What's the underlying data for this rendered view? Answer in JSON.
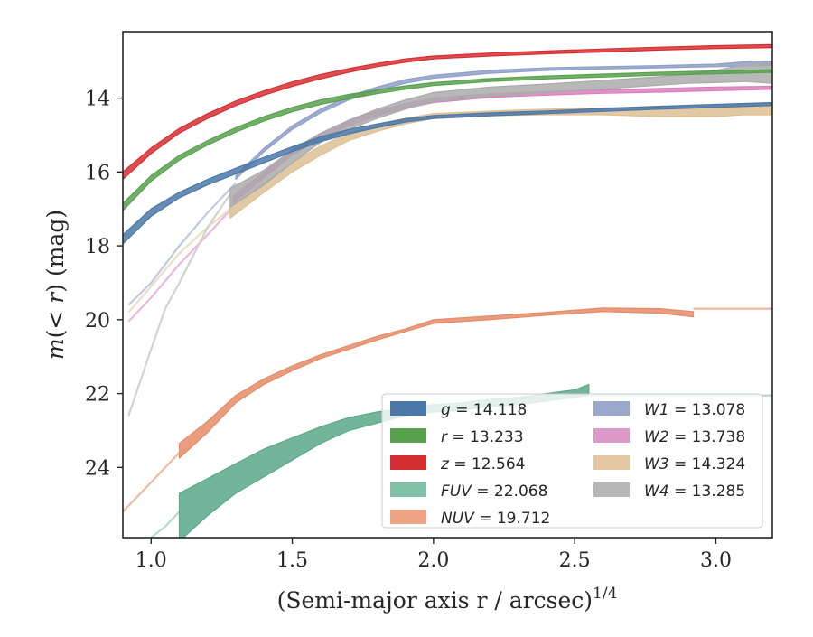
{
  "chart_data": {
    "type": "line",
    "xlabel": "(Semi-major axis r / arcsec)",
    "xlabel_superscript": "1/4",
    "ylabel": "m(< r) (mag)",
    "xlim": [
      0.9,
      3.2
    ],
    "ylim": [
      25.9,
      12.2
    ],
    "y_inverted": true,
    "grid": false,
    "legend_position": "lower-right",
    "x_ticks": [
      1.0,
      1.5,
      2.0,
      2.5,
      3.0
    ],
    "x_tick_labels": [
      "1.0",
      "1.5",
      "2.0",
      "2.5",
      "3.0"
    ],
    "y_ticks": [
      14,
      16,
      18,
      20,
      22,
      24
    ],
    "y_tick_labels": [
      "14",
      "16",
      "18",
      "20",
      "22",
      "24"
    ],
    "series": [
      {
        "name": "FUV",
        "label": "FUV = 22.068",
        "color": "#5aa88a",
        "total_label": "22.068",
        "faint_color": "#b6d9cc",
        "faint": {
          "x": [
            0.95,
            1.0,
            1.05,
            1.1
          ],
          "y": [
            26.0,
            25.9,
            25.6,
            25.2
          ]
        },
        "band": {
          "x": [
            1.1,
            1.2,
            1.3,
            1.4,
            1.5,
            1.6,
            1.7,
            1.8,
            1.9,
            2.0,
            2.1,
            2.2,
            2.3,
            2.4,
            2.5,
            2.55
          ],
          "lo": [
            24.7,
            24.3,
            23.9,
            23.5,
            23.2,
            22.9,
            22.65,
            22.5,
            22.4,
            22.3,
            22.25,
            22.15,
            22.1,
            22.0,
            21.9,
            21.75
          ],
          "hi": [
            26.0,
            25.3,
            24.7,
            24.25,
            23.8,
            23.35,
            23.0,
            22.8,
            22.6,
            22.5,
            22.45,
            22.35,
            22.3,
            22.2,
            22.1,
            22.05
          ]
        },
        "tail": {
          "x": [
            2.55,
            2.8,
            3.2
          ],
          "y": [
            22.05,
            22.05,
            22.05
          ]
        }
      },
      {
        "name": "NUV",
        "label": "NUV = 19.712",
        "color": "#e58b67",
        "total_label": "19.712",
        "faint_color": "#f0baa0",
        "faint": {
          "x": [
            0.9,
            1.0,
            1.1
          ],
          "y": [
            25.2,
            24.4,
            23.6
          ]
        },
        "band": {
          "x": [
            1.1,
            1.2,
            1.3,
            1.4,
            1.5,
            1.6,
            1.7,
            1.8,
            1.9,
            2.0,
            2.2,
            2.4,
            2.6,
            2.8,
            2.92
          ],
          "lo": [
            23.35,
            22.75,
            22.05,
            21.6,
            21.25,
            20.95,
            20.7,
            20.45,
            20.25,
            20.0,
            19.9,
            19.8,
            19.68,
            19.7,
            19.78
          ],
          "hi": [
            23.75,
            23.05,
            22.25,
            21.75,
            21.38,
            21.05,
            20.8,
            20.55,
            20.32,
            20.1,
            20.0,
            19.88,
            19.78,
            19.82,
            19.92
          ]
        },
        "tail": {
          "x": [
            2.92,
            3.2
          ],
          "y": [
            19.7,
            19.7
          ]
        }
      },
      {
        "name": "W1",
        "label": "W1 = 13.078",
        "color": "#8f9fc8",
        "total_label": "13.078",
        "faint_color": "#c0c9e2",
        "faint": {
          "x": [
            0.92,
            1.0,
            1.1,
            1.2,
            1.3
          ],
          "y": [
            19.6,
            19.0,
            18.0,
            17.1,
            16.3
          ]
        },
        "band": {
          "x": [
            1.3,
            1.4,
            1.5,
            1.6,
            1.7,
            1.8,
            1.9,
            2.0,
            2.2,
            2.4,
            2.6,
            2.8,
            3.0,
            3.1,
            3.2
          ],
          "lo": [
            16.1,
            15.35,
            14.75,
            14.3,
            13.95,
            13.7,
            13.5,
            13.38,
            13.25,
            13.18,
            13.15,
            13.12,
            13.08,
            13.02,
            13.0
          ],
          "hi": [
            16.2,
            15.45,
            14.85,
            14.4,
            14.05,
            13.8,
            13.6,
            13.46,
            13.33,
            13.25,
            13.21,
            13.18,
            13.15,
            13.13,
            13.12
          ]
        }
      },
      {
        "name": "W2",
        "label": "W2 = 13.738",
        "color": "#d97fbd",
        "total_label": "13.738",
        "faint_color": "#ebb8d9",
        "faint": {
          "x": [
            0.92,
            1.0,
            1.1,
            1.2,
            1.29
          ],
          "y": [
            20.05,
            19.4,
            18.5,
            17.7,
            16.95
          ]
        },
        "band": {
          "x": [
            1.29,
            1.4,
            1.5,
            1.6,
            1.7,
            1.8,
            1.9,
            2.0,
            2.2,
            2.4,
            2.6,
            2.8,
            3.0,
            3.2
          ],
          "lo": [
            16.65,
            16.0,
            15.4,
            14.95,
            14.6,
            14.35,
            14.15,
            14.0,
            13.88,
            13.82,
            13.78,
            13.74,
            13.7,
            13.68
          ],
          "hi": [
            16.85,
            16.15,
            15.55,
            15.1,
            14.75,
            14.48,
            14.28,
            14.12,
            13.98,
            13.92,
            13.87,
            13.84,
            13.8,
            13.76
          ]
        }
      },
      {
        "name": "W3",
        "label": "W3 = 14.324",
        "color": "#ddbf93",
        "total_label": "14.324",
        "faint_color": "#eedcc3",
        "faint": {
          "x": [
            0.92,
            1.0,
            1.1,
            1.2,
            1.28
          ],
          "y": [
            19.8,
            19.1,
            18.2,
            17.5,
            17.0
          ]
        },
        "band": {
          "x": [
            1.28,
            1.4,
            1.5,
            1.6,
            1.7,
            1.8,
            1.9,
            2.0,
            2.2,
            2.4,
            2.6,
            2.8,
            3.0,
            3.1,
            3.2
          ],
          "lo": [
            16.95,
            16.3,
            15.75,
            15.3,
            14.95,
            14.72,
            14.55,
            14.42,
            14.35,
            14.3,
            14.27,
            14.22,
            14.2,
            14.15,
            14.15
          ],
          "hi": [
            17.25,
            16.55,
            16.0,
            15.55,
            15.15,
            14.9,
            14.7,
            14.55,
            14.48,
            14.45,
            14.45,
            14.5,
            14.5,
            14.45,
            14.45
          ]
        }
      },
      {
        "name": "W4",
        "label": "W4 = 13.285",
        "color": "#ababab",
        "total_label": "13.285",
        "faint_color": "#d2d2d2",
        "faint": {
          "x": [
            0.92,
            1.0,
            1.05,
            1.1,
            1.2,
            1.28
          ],
          "y": [
            22.6,
            20.8,
            19.7,
            19.0,
            17.5,
            16.6
          ]
        },
        "band": {
          "x": [
            1.28,
            1.4,
            1.5,
            1.6,
            1.7,
            1.8,
            1.9,
            2.0,
            2.2,
            2.4,
            2.6,
            2.8,
            2.9,
            3.0,
            3.1,
            3.2
          ],
          "lo": [
            16.45,
            15.95,
            15.4,
            14.95,
            14.6,
            14.3,
            14.05,
            13.85,
            13.7,
            13.62,
            13.52,
            13.42,
            13.35,
            13.25,
            13.1,
            13.05
          ],
          "hi": [
            16.95,
            16.35,
            15.75,
            15.2,
            14.85,
            14.55,
            14.3,
            14.1,
            13.95,
            13.85,
            13.75,
            13.65,
            13.6,
            13.58,
            13.55,
            13.6
          ]
        }
      },
      {
        "name": "g",
        "label": "g = 14.118",
        "color": "#4c78a8",
        "total_label": "14.118",
        "band": {
          "x": [
            0.9,
            1.0,
            1.1,
            1.2,
            1.3,
            1.4,
            1.5,
            1.6,
            1.7,
            1.8,
            1.9,
            2.0,
            2.2,
            2.4,
            2.6,
            2.8,
            3.0,
            3.2
          ],
          "lo": [
            17.7,
            17.0,
            16.55,
            16.2,
            15.9,
            15.6,
            15.32,
            15.05,
            14.85,
            14.7,
            14.56,
            14.47,
            14.4,
            14.35,
            14.28,
            14.22,
            14.17,
            14.12
          ],
          "hi": [
            17.95,
            17.2,
            16.7,
            16.35,
            16.05,
            15.75,
            15.45,
            15.18,
            14.97,
            14.8,
            14.65,
            14.55,
            14.48,
            14.42,
            14.36,
            14.3,
            14.25,
            14.2
          ]
        }
      },
      {
        "name": "r",
        "label": "r = 13.233",
        "color": "#59a14f",
        "total_label": "13.233",
        "band": {
          "x": [
            0.9,
            1.0,
            1.1,
            1.2,
            1.3,
            1.4,
            1.5,
            1.6,
            1.7,
            1.8,
            1.9,
            2.0,
            2.2,
            2.4,
            2.6,
            2.8,
            3.0,
            3.2
          ],
          "lo": [
            16.85,
            16.1,
            15.55,
            15.15,
            14.8,
            14.5,
            14.25,
            14.05,
            13.9,
            13.78,
            13.67,
            13.58,
            13.47,
            13.4,
            13.35,
            13.3,
            13.26,
            13.23
          ],
          "hi": [
            17.05,
            16.25,
            15.68,
            15.27,
            14.92,
            14.62,
            14.37,
            14.17,
            14.02,
            13.88,
            13.76,
            13.66,
            13.55,
            13.48,
            13.43,
            13.38,
            13.34,
            13.3
          ]
        }
      },
      {
        "name": "z",
        "label": "z = 12.564",
        "color": "#d62f33",
        "total_label": "12.564",
        "band": {
          "x": [
            0.9,
            1.0,
            1.1,
            1.2,
            1.3,
            1.4,
            1.5,
            1.6,
            1.7,
            1.8,
            1.9,
            2.0,
            2.2,
            2.4,
            2.6,
            2.8,
            3.0,
            3.2
          ],
          "lo": [
            16.0,
            15.35,
            14.82,
            14.42,
            14.08,
            13.8,
            13.56,
            13.36,
            13.2,
            13.06,
            12.94,
            12.86,
            12.78,
            12.72,
            12.67,
            12.62,
            12.58,
            12.55
          ],
          "hi": [
            16.2,
            15.5,
            14.95,
            14.55,
            14.2,
            13.92,
            13.68,
            13.48,
            13.3,
            13.15,
            13.03,
            12.94,
            12.86,
            12.8,
            12.75,
            12.7,
            12.66,
            12.63
          ]
        }
      }
    ],
    "legend": [
      {
        "label": "g = 14.118",
        "color": "#4c78a8"
      },
      {
        "label": "r = 13.233",
        "color": "#59a14f"
      },
      {
        "label": "z = 12.564",
        "color": "#d62f33"
      },
      {
        "label": "FUV = 22.068",
        "color": "#7fc1a9"
      },
      {
        "label": "NUV = 19.712",
        "color": "#eda384"
      },
      {
        "label": "W1 = 13.078",
        "color": "#9aa8cc"
      },
      {
        "label": "W2 = 13.738",
        "color": "#de99cb"
      },
      {
        "label": "W3 = 14.324",
        "color": "#e2c7a2"
      },
      {
        "label": "W4 = 13.285",
        "color": "#b7b7b7"
      }
    ]
  }
}
